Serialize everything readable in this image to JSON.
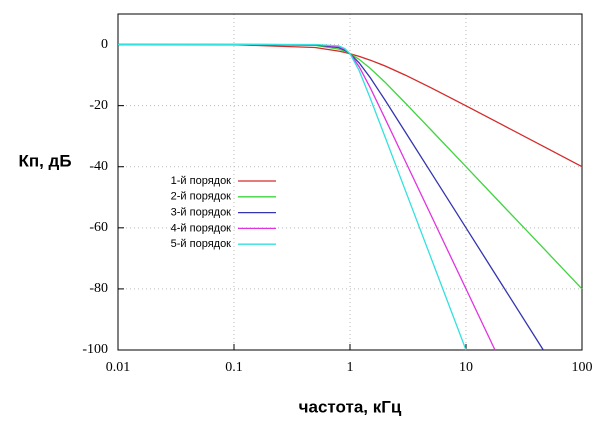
{
  "chart_data": {
    "type": "line",
    "xlabel": "частота, кГц",
    "ylabel": "Кп, дБ",
    "xlim": [
      0.01,
      100
    ],
    "xticks": [
      0.01,
      0.1,
      1,
      10,
      100
    ],
    "xscale": "log",
    "ylim": [
      -100,
      10
    ],
    "yticks": [
      0,
      -20,
      -40,
      -60,
      -80,
      -100
    ],
    "grid": true,
    "legend": "left",
    "series": [
      {
        "name": "1-й порядок",
        "color": "#d42a2a",
        "x": [
          0.01,
          0.1,
          0.5,
          0.8,
          0.9,
          1,
          1.2,
          1.5,
          2,
          3,
          5,
          10,
          20,
          50,
          100
        ],
        "values": [
          0,
          -0.04,
          -0.97,
          -2.15,
          -2.58,
          -3.01,
          -3.87,
          -5.12,
          -6.99,
          -10,
          -14.15,
          -20.04,
          -26.03,
          -33.98,
          -40
        ]
      },
      {
        "name": "2-й порядок",
        "color": "#3fd43f",
        "x": [
          0.01,
          0.1,
          0.5,
          0.8,
          0.9,
          1,
          1.2,
          1.5,
          2,
          3,
          5,
          10,
          20,
          50,
          100
        ],
        "values": [
          0,
          0,
          -0.26,
          -1.49,
          -2.19,
          -3.01,
          -4.87,
          -7.83,
          -12.3,
          -19.14,
          -27.97,
          -40,
          -52.04,
          -67.96,
          -80
        ]
      },
      {
        "name": "3-й порядок",
        "color": "#3434b0",
        "x": [
          0.01,
          0.1,
          0.5,
          0.8,
          0.9,
          1,
          1.2,
          1.5,
          2,
          3,
          5,
          10,
          20,
          46.4
        ],
        "values": [
          0,
          0,
          -0.07,
          -1.01,
          -1.85,
          -3.01,
          -6.01,
          -10.93,
          -18.13,
          -28.63,
          -41.94,
          -60,
          -78.06,
          -100
        ]
      },
      {
        "name": "4-й порядок",
        "color": "#e034e0",
        "x": [
          0.01,
          0.1,
          0.5,
          0.8,
          0.9,
          1,
          1.2,
          1.5,
          2,
          3,
          5,
          10,
          17.8
        ],
        "values": [
          0,
          0,
          -0.02,
          -0.67,
          -1.55,
          -3.01,
          -7.24,
          -14.25,
          -24.1,
          -38.17,
          -55.92,
          -80,
          -100
        ]
      },
      {
        "name": "5-й порядок",
        "color": "#34e0e0",
        "x": [
          0.01,
          0.1,
          0.5,
          0.8,
          0.9,
          1,
          1.2,
          1.5,
          2,
          3,
          5,
          10
        ],
        "values": [
          0,
          0,
          0,
          -0.44,
          -1.3,
          -3.01,
          -8.57,
          -17.69,
          -30.11,
          -47.71,
          -69.9,
          -100
        ]
      }
    ]
  }
}
